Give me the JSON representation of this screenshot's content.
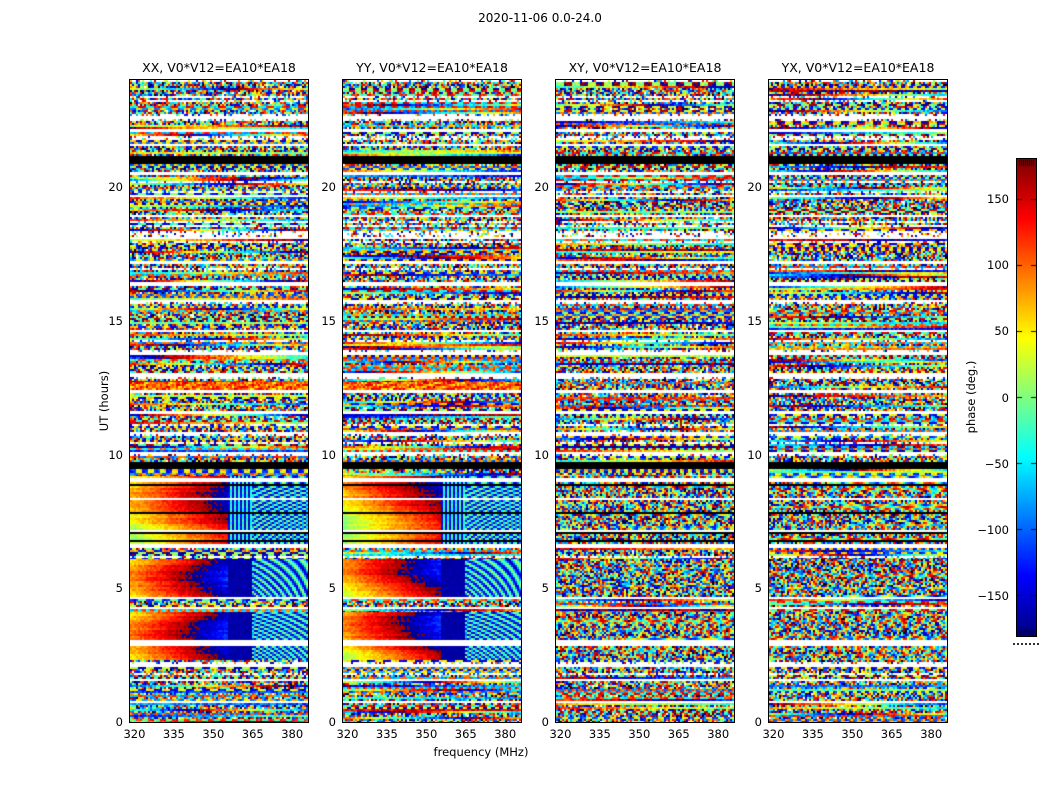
{
  "title": "2020-11-06 0.0-24.0",
  "chart_data": {
    "type": "heatmap",
    "title": "2020-11-06 0.0-24.0",
    "xlabel": "frequency (MHz)",
    "ylabel": "UT (hours)",
    "xticks": [
      320,
      335,
      350,
      365,
      380
    ],
    "yticks": [
      0,
      5,
      10,
      15,
      20
    ],
    "xlim": [
      318.3,
      386.0
    ],
    "ylim": [
      0,
      24
    ],
    "panels": [
      {
        "label": "XX, V0*V12=EA10*EA18",
        "pol": "XX",
        "kind": "parallel"
      },
      {
        "label": "YY, V0*V12=EA10*EA18",
        "pol": "YY",
        "kind": "parallel"
      },
      {
        "label": "XY, V0*V12=EA10*EA18",
        "pol": "XY",
        "kind": "cross"
      },
      {
        "label": "YX, V0*V12=EA10*EA18",
        "pol": "YX",
        "kind": "cross"
      }
    ],
    "colorbar": {
      "label": "phase (deg.)",
      "ticks": [
        150,
        100,
        50,
        0,
        -50,
        -100,
        -150
      ],
      "vmin": -180,
      "vmax": 180,
      "cmap": "jet"
    },
    "time_bands": [
      [
        24.0,
        22.65,
        "noise"
      ],
      [
        22.65,
        22.54,
        "flag"
      ],
      [
        22.54,
        22.16,
        "noise"
      ],
      [
        22.16,
        22.05,
        "flag"
      ],
      [
        22.05,
        21.6,
        "noise"
      ],
      [
        21.6,
        21.53,
        "flag"
      ],
      [
        21.53,
        21.15,
        "noise"
      ],
      [
        21.15,
        20.85,
        "black"
      ],
      [
        20.85,
        20.55,
        "noise"
      ],
      [
        20.55,
        20.44,
        "flag"
      ],
      [
        20.44,
        19.73,
        "noise"
      ],
      [
        19.73,
        19.61,
        "flag"
      ],
      [
        19.61,
        18.98,
        "noise"
      ],
      [
        18.98,
        18.86,
        "flag"
      ],
      [
        18.86,
        18.15,
        "noise"
      ],
      [
        18.15,
        18.04,
        "flag"
      ],
      [
        18.04,
        17.25,
        "noise"
      ],
      [
        17.25,
        17.14,
        "flag"
      ],
      [
        17.14,
        16.43,
        "noise"
      ],
      [
        16.43,
        16.31,
        "flag"
      ],
      [
        16.31,
        15.83,
        "noise"
      ],
      [
        15.83,
        15.71,
        "flag"
      ],
      [
        15.71,
        14.7,
        "noise"
      ],
      [
        14.7,
        14.59,
        "flag"
      ],
      [
        14.59,
        13.88,
        "noise"
      ],
      [
        13.88,
        13.73,
        "flag"
      ],
      [
        13.73,
        13.05,
        "noise"
      ],
      [
        13.05,
        12.9,
        "flag"
      ],
      [
        12.9,
        12.72,
        "noise"
      ],
      [
        12.72,
        12.45,
        "hot"
      ],
      [
        12.45,
        12.3,
        "flag"
      ],
      [
        12.3,
        11.63,
        "noise"
      ],
      [
        11.63,
        11.51,
        "flag"
      ],
      [
        11.51,
        10.88,
        "noise"
      ],
      [
        10.88,
        10.76,
        "flag"
      ],
      [
        10.76,
        10.13,
        "noise"
      ],
      [
        10.13,
        10.01,
        "flag"
      ],
      [
        10.01,
        9.71,
        "noise"
      ],
      [
        9.71,
        9.45,
        "black"
      ],
      [
        9.45,
        9.19,
        "noise"
      ],
      [
        9.19,
        6.64,
        "cal_a"
      ],
      [
        6.64,
        6.49,
        "flag"
      ],
      [
        6.49,
        6.08,
        "noise"
      ],
      [
        6.08,
        4.69,
        "cal_b"
      ],
      [
        4.69,
        4.58,
        "flag"
      ],
      [
        4.58,
        4.35,
        "noise"
      ],
      [
        4.35,
        4.24,
        "flag"
      ],
      [
        4.24,
        4.13,
        "noise"
      ],
      [
        4.13,
        2.33,
        "cal_b"
      ],
      [
        2.33,
        2.18,
        "noise"
      ],
      [
        2.18,
        2.06,
        "flag"
      ],
      [
        2.06,
        1.65,
        "noise"
      ],
      [
        1.65,
        1.54,
        "flag"
      ],
      [
        1.54,
        0.83,
        "noise"
      ],
      [
        0.83,
        0.71,
        "flag"
      ],
      [
        0.71,
        0.0,
        "noise"
      ]
    ]
  }
}
